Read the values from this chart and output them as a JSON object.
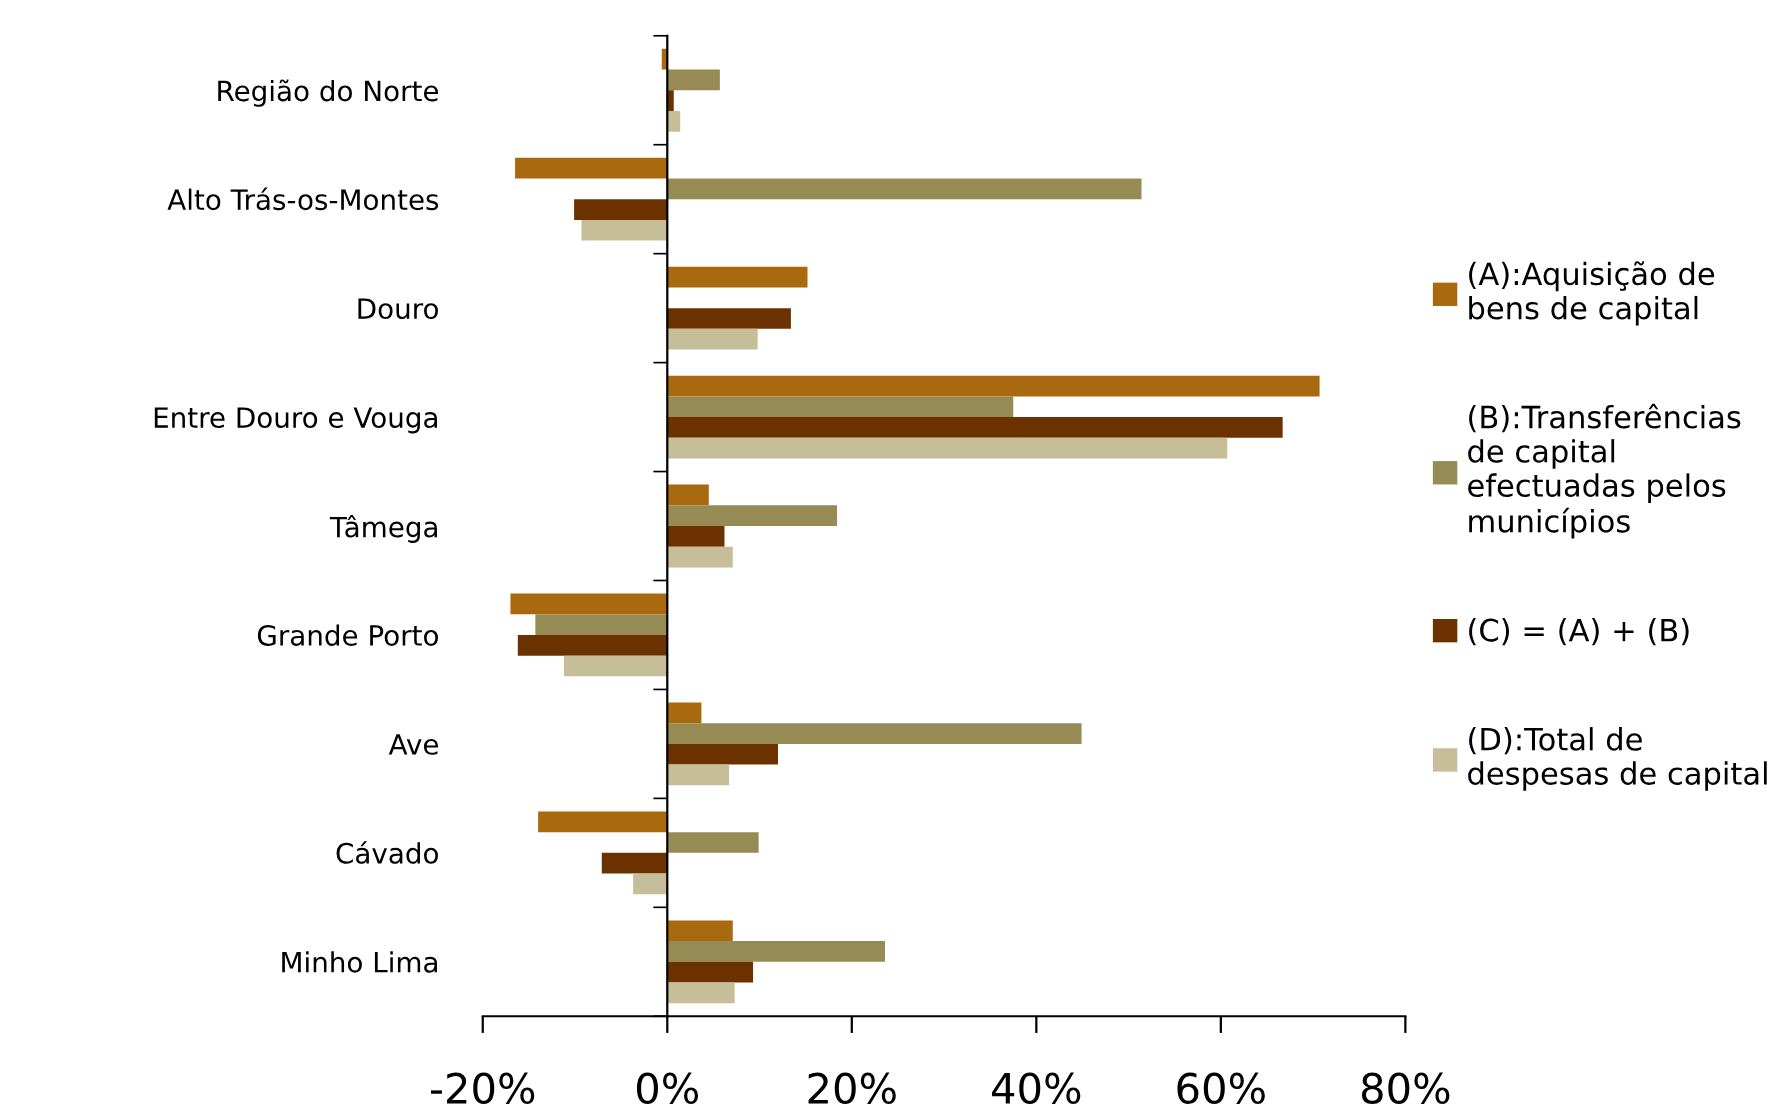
{
  "chart_data": {
    "type": "bar",
    "orientation": "horizontal",
    "categories": [
      "Região do Norte",
      "Alto Trás-os-Montes",
      "Douro",
      "Entre Douro e Vouga",
      "Tâmega",
      "Grande Porto",
      "Ave",
      "Cávado",
      "Minho Lima"
    ],
    "series": [
      {
        "name": "(A):Aquisição de\nbens de capital",
        "color": "#a8690f",
        "values": [
          -0.6,
          -16.5,
          15.2,
          70.7,
          4.5,
          -17.0,
          3.7,
          -14.0,
          7.1
        ]
      },
      {
        "name": "(B):Transferências\nde capital\nefectuadas pelos\nmunicípios",
        "color": "#968b55",
        "values": [
          5.7,
          51.4,
          null,
          37.5,
          18.4,
          -14.3,
          44.9,
          9.9,
          23.6
        ]
      },
      {
        "name": "(C) = (A) + (B)",
        "color": "#6b3200",
        "values": [
          0.7,
          -10.1,
          13.4,
          66.7,
          6.2,
          -16.2,
          12.0,
          -7.1,
          9.3
        ]
      },
      {
        "name": "(D):Total de\ndespesas de capital",
        "color": "#c6bd99",
        "values": [
          1.4,
          -9.3,
          9.8,
          60.7,
          7.1,
          -11.2,
          6.7,
          -3.7,
          7.3
        ]
      }
    ],
    "xlim": [
      -20,
      80
    ],
    "xticks": [
      {
        "value": -20,
        "label": "-20%"
      },
      {
        "value": 0,
        "label": "0%"
      },
      {
        "value": 20,
        "label": "20%"
      },
      {
        "value": 40,
        "label": "40%"
      },
      {
        "value": 60,
        "label": "60%"
      },
      {
        "value": 80,
        "label": "80%"
      }
    ],
    "legend": "right"
  }
}
